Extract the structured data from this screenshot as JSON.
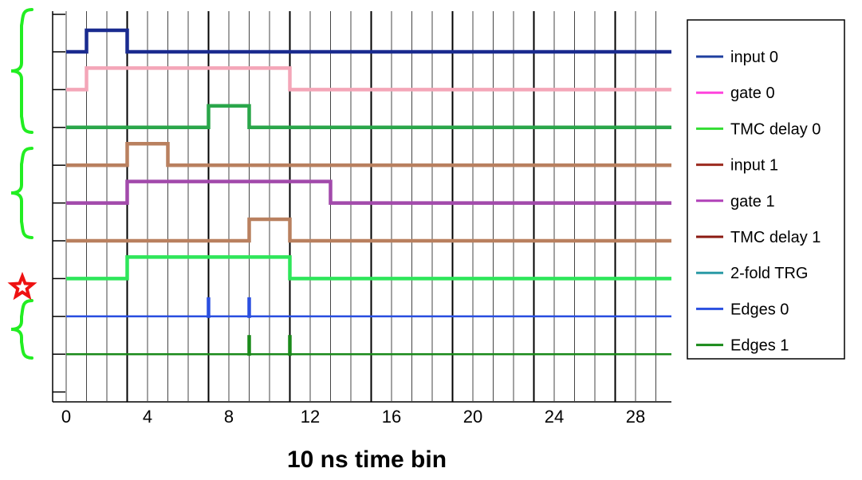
{
  "chart_data": {
    "type": "line",
    "xlabel": "10 ns time bin",
    "x_ticks": [
      0,
      4,
      8,
      12,
      16,
      20,
      24,
      28
    ],
    "x_tick_labels": [
      "0",
      "4",
      "8",
      "12",
      "16",
      "20",
      "24",
      "28"
    ],
    "xlim": [
      0,
      30
    ],
    "grid": true,
    "legend_position": "right",
    "series": [
      {
        "name": "input 0",
        "legend_color": "#1f3f9f",
        "line_color": "#1a2b8f",
        "pulses": [
          {
            "start": 1,
            "end": 3
          }
        ]
      },
      {
        "name": "gate 0",
        "legend_color": "#ff44dd",
        "line_color": "#f4a6b8",
        "pulses": [
          {
            "start": 1,
            "end": 11
          }
        ]
      },
      {
        "name": "TMC delay 0",
        "legend_color": "#33dd33",
        "line_color": "#2aa64a",
        "pulses": [
          {
            "start": 7,
            "end": 9
          }
        ]
      },
      {
        "name": "input 1",
        "legend_color": "#9b2a1e",
        "line_color": "#b9805f",
        "pulses": [
          {
            "start": 3,
            "end": 5
          }
        ]
      },
      {
        "name": "gate 1",
        "legend_color": "#b040b8",
        "line_color": "#a24aab",
        "pulses": [
          {
            "start": 3,
            "end": 13
          }
        ]
      },
      {
        "name": "TMC delay 1",
        "legend_color": "#8b1a12",
        "line_color": "#b9805f",
        "pulses": [
          {
            "start": 9,
            "end": 11
          }
        ]
      },
      {
        "name": "2-fold TRG",
        "legend_color": "#2a9aa6",
        "line_color": "#2ee65a",
        "pulses": [
          {
            "start": 3,
            "end": 11
          }
        ]
      },
      {
        "name": "Edges 0",
        "legend_color": "#2a4fe0",
        "line_color": "#2a4fe0",
        "edges": [
          7,
          9
        ]
      },
      {
        "name": "Edges 1",
        "legend_color": "#1a8a1a",
        "line_color": "#1a8a1a",
        "edges": [
          9,
          11
        ]
      }
    ],
    "groups": [
      {
        "series": [
          "input 0",
          "gate 0",
          "TMC delay 0"
        ],
        "color": "#22ee22"
      },
      {
        "series": [
          "input 1",
          "gate 1",
          "TMC delay 1"
        ],
        "color": "#22ee22"
      },
      {
        "series": [
          "Edges 0",
          "Edges 1"
        ],
        "color": "#22ee22"
      }
    ],
    "marker": {
      "shape": "star",
      "series": "2-fold TRG",
      "color": "#ee1111"
    }
  }
}
